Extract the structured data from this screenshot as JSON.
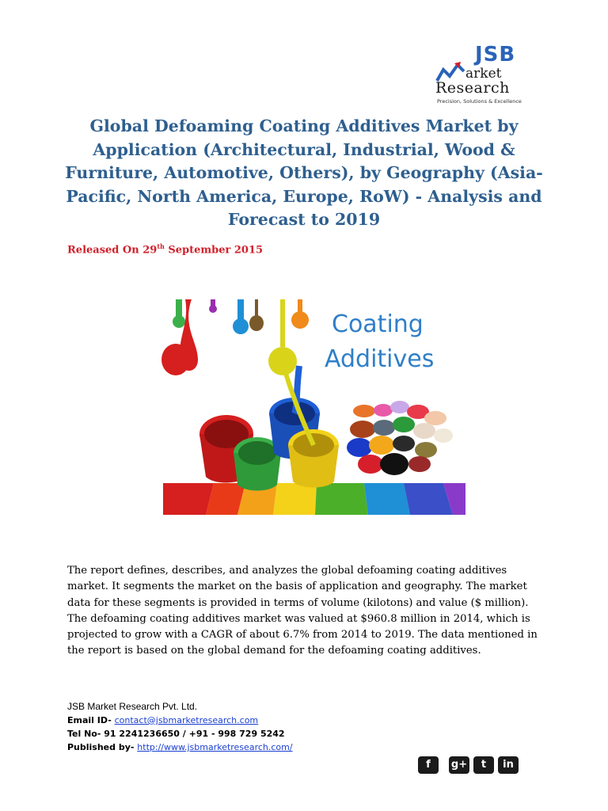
{
  "logo": {
    "jsb": "JSB",
    "market": "arket",
    "research": "Research",
    "tagline": "Precision, Solutions & Excellence"
  },
  "title": "Global Defoaming Coating Additives Market by Application (Architectural, Industrial, Wood & Furniture, Automotive, Others), by Geography (Asia-Pacific, North America, Europe, RoW) - Analysis and Forecast to 2019",
  "released": {
    "prefix": "Released On 29",
    "sup": "th",
    "suffix": " September 2015"
  },
  "hero": {
    "title_line1": "Coating",
    "title_line2": "Additives"
  },
  "body": "The report defines, describes, and analyzes the global defoaming coating additives market. It segments the market on the basis of application and geography. The market data for these segments is provided in terms of volume (kilotons) and value ($ million). The defoaming coating additives market was valued at $960.8 million in 2014, which is projected to grow with a CAGR of about 6.7% from 2014 to 2019. The data mentioned in the report is based on the global demand for the defoaming coating additives.",
  "footer": {
    "company": "JSB Market Research Pvt. Ltd.",
    "email_label": "Email ID- ",
    "email": "contact@jsbmarketresearch.com",
    "tel": "Tel No- 91 2241236650 / +91 - 998 729 5242",
    "published_label": "Published by- ",
    "published_url": "http://www.jsbmarketresearch.com/"
  },
  "social": [
    "f",
    "g+",
    "t",
    "in"
  ],
  "colors": {
    "title": "#2e5f8f",
    "released": "#d0202a",
    "logo_blue": "#2a63b8",
    "link": "#1a3fcf"
  }
}
